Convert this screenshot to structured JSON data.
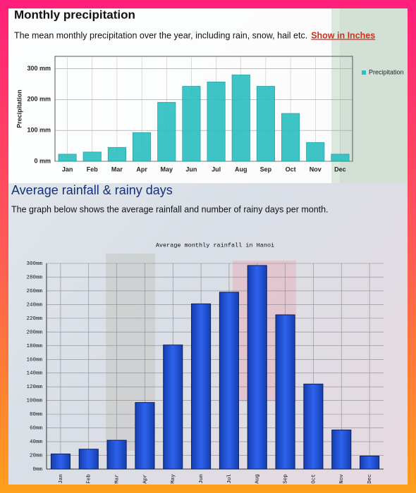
{
  "chart_data": [
    {
      "type": "bar",
      "title": "Monthly precipitation",
      "subtitle": "The mean monthly precipitation over the year, including rain, snow, hail etc.",
      "link": "Show in Inches",
      "ylabel": "Precipitation",
      "categories": [
        "Jan",
        "Feb",
        "Mar",
        "Apr",
        "May",
        "Jun",
        "Jul",
        "Aug",
        "Sep",
        "Oct",
        "Nov",
        "Dec"
      ],
      "series": [
        {
          "name": "Precipitation",
          "color": "#2bbfbf",
          "values": [
            23,
            30,
            45,
            93,
            191,
            243,
            257,
            280,
            243,
            155,
            61,
            23
          ]
        }
      ],
      "ylim": [
        0,
        340
      ],
      "yticks": [
        {
          "value": 0,
          "label": "0 mm"
        },
        {
          "value": 100,
          "label": "100 mm"
        },
        {
          "value": 200,
          "label": "200 mm"
        },
        {
          "value": 300,
          "label": "300 mm"
        }
      ],
      "grid": true,
      "legend": "right"
    },
    {
      "type": "bar",
      "heading": "Average rainfall & rainy days",
      "subtitle": "The graph below shows the average rainfall and number of rainy days per month.",
      "title": "Average monthly rainfall in Hanoi",
      "categories": [
        "Jan",
        "Feb",
        "Mar",
        "Apr",
        "May",
        "Jun",
        "Jul",
        "Aug",
        "Sep",
        "Oct",
        "Nov",
        "Dec"
      ],
      "values": [
        22,
        29,
        42,
        97,
        181,
        241,
        258,
        297,
        225,
        124,
        57,
        19
      ],
      "color": "#1f4fd6",
      "ylim": [
        0,
        300
      ],
      "yticks": [
        {
          "value": 0,
          "label": "0mm"
        },
        {
          "value": 20,
          "label": "20mm"
        },
        {
          "value": 40,
          "label": "40mm"
        },
        {
          "value": 60,
          "label": "60mm"
        },
        {
          "value": 80,
          "label": "80mm"
        },
        {
          "value": 100,
          "label": "100mm"
        },
        {
          "value": 120,
          "label": "120mm"
        },
        {
          "value": 140,
          "label": "140mm"
        },
        {
          "value": 160,
          "label": "160mm"
        },
        {
          "value": 180,
          "label": "180mm"
        },
        {
          "value": 200,
          "label": "200mm"
        },
        {
          "value": 220,
          "label": "220mm"
        },
        {
          "value": 240,
          "label": "240mm"
        },
        {
          "value": 260,
          "label": "260mm"
        },
        {
          "value": 280,
          "label": "280mm"
        },
        {
          "value": 300,
          "label": "300mm"
        }
      ],
      "grid": true
    }
  ]
}
